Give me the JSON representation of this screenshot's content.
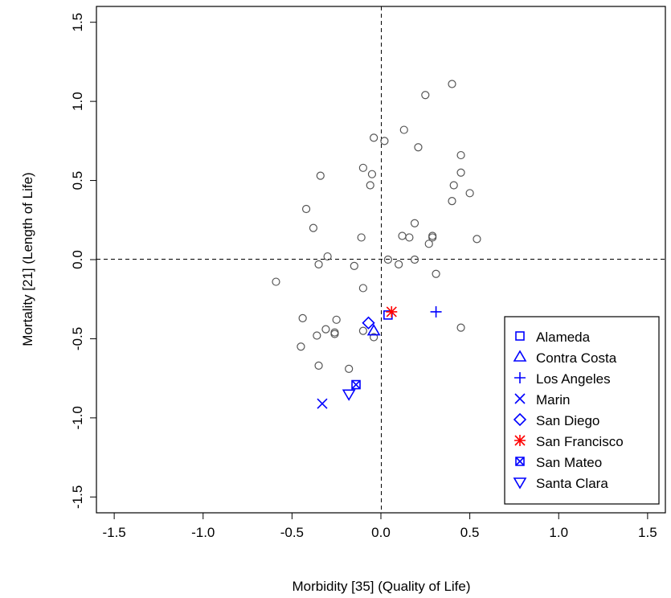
{
  "chart_data": {
    "type": "scatter",
    "xlabel": "Morbidity [35] (Quality of Life)",
    "ylabel": "Mortality [21] (Length of Life)",
    "xlim": [
      -1.6,
      1.6
    ],
    "ylim": [
      -1.6,
      1.6
    ],
    "x_ticks": [
      "-1.5",
      "-1.0",
      "-0.5",
      "0.0",
      "0.5",
      "1.0",
      "1.5"
    ],
    "y_ticks": [
      "-1.5",
      "-1.0",
      "-0.5",
      "0.0",
      "0.5",
      "1.0",
      "1.5"
    ],
    "reference_lines": {
      "x": 0,
      "y": 0,
      "style": "dashed"
    },
    "legend_position": "bottom-right",
    "background_points": {
      "marker": "circle-open",
      "color": "#555555",
      "points": [
        [
          0.4,
          1.11
        ],
        [
          0.25,
          1.04
        ],
        [
          0.13,
          0.82
        ],
        [
          0.21,
          0.71
        ],
        [
          -0.04,
          0.77
        ],
        [
          0.02,
          0.75
        ],
        [
          0.45,
          0.66
        ],
        [
          -0.1,
          0.58
        ],
        [
          -0.05,
          0.54
        ],
        [
          -0.34,
          0.53
        ],
        [
          0.45,
          0.55
        ],
        [
          -0.06,
          0.47
        ],
        [
          0.41,
          0.47
        ],
        [
          0.5,
          0.42
        ],
        [
          0.4,
          0.37
        ],
        [
          -0.42,
          0.32
        ],
        [
          0.19,
          0.23
        ],
        [
          -0.38,
          0.2
        ],
        [
          0.12,
          0.15
        ],
        [
          0.16,
          0.14
        ],
        [
          0.29,
          0.15
        ],
        [
          0.29,
          0.14
        ],
        [
          0.54,
          0.13
        ],
        [
          -0.11,
          0.14
        ],
        [
          0.27,
          0.1
        ],
        [
          -0.3,
          0.02
        ],
        [
          -0.35,
          -0.03
        ],
        [
          0.04,
          0.0
        ],
        [
          0.19,
          0.0
        ],
        [
          0.1,
          -0.03
        ],
        [
          -0.15,
          -0.04
        ],
        [
          0.31,
          -0.09
        ],
        [
          -0.59,
          -0.14
        ],
        [
          -0.1,
          -0.18
        ],
        [
          -0.44,
          -0.37
        ],
        [
          -0.25,
          -0.38
        ],
        [
          0.45,
          -0.43
        ],
        [
          -0.31,
          -0.44
        ],
        [
          -0.26,
          -0.46
        ],
        [
          -0.26,
          -0.47
        ],
        [
          -0.1,
          -0.45
        ],
        [
          -0.36,
          -0.48
        ],
        [
          -0.04,
          -0.49
        ],
        [
          -0.45,
          -0.55
        ],
        [
          -0.35,
          -0.67
        ],
        [
          -0.18,
          -0.69
        ]
      ]
    },
    "series": [
      {
        "name": "Alameda",
        "marker": "square",
        "color": "#0000ff",
        "points": [
          [
            0.04,
            -0.35
          ]
        ]
      },
      {
        "name": "Contra Costa",
        "marker": "triangle-up",
        "color": "#0000ff",
        "points": [
          [
            -0.04,
            -0.45
          ]
        ]
      },
      {
        "name": "Los Angeles",
        "marker": "plus",
        "color": "#0000ff",
        "points": [
          [
            0.31,
            -0.33
          ]
        ]
      },
      {
        "name": "Marin",
        "marker": "cross",
        "color": "#0000ff",
        "points": [
          [
            -0.33,
            -0.91
          ]
        ]
      },
      {
        "name": "San Diego",
        "marker": "diamond",
        "color": "#0000ff",
        "points": [
          [
            -0.07,
            -0.4
          ]
        ]
      },
      {
        "name": "San Francisco",
        "marker": "asterisk",
        "color": "#ff0000",
        "points": [
          [
            0.06,
            -0.33
          ]
        ]
      },
      {
        "name": "San Mateo",
        "marker": "square-cross",
        "color": "#0000ff",
        "points": [
          [
            -0.14,
            -0.79
          ]
        ]
      },
      {
        "name": "Santa Clara",
        "marker": "triangle-down",
        "color": "#0000ff",
        "points": [
          [
            -0.18,
            -0.85
          ]
        ]
      }
    ]
  }
}
